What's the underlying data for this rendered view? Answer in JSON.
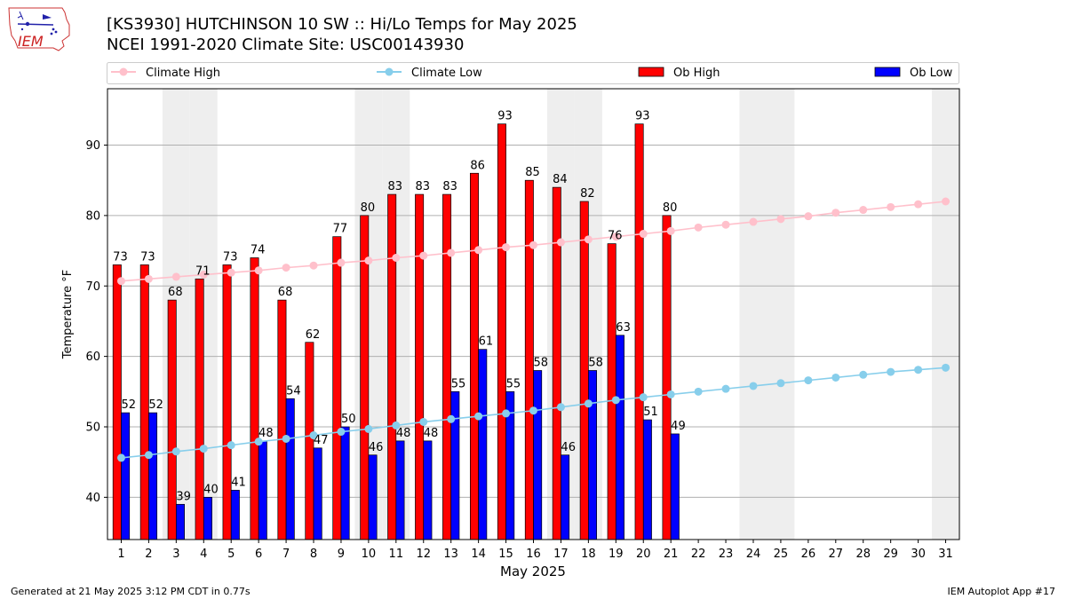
{
  "title_line1": "[KS3930] HUTCHINSON 10 SW :: Hi/Lo Temps for May 2025",
  "title_line2": "NCEI 1991-2020 Climate Site: USC00143930",
  "logo_text": "IEM",
  "footer_left": "Generated at 21 May 2025 3:12 PM CDT in 0.77s",
  "footer_right": "IEM Autoplot App #17",
  "colors": {
    "climate_high": "#ffc0cb",
    "climate_low": "#87ceeb",
    "ob_high": "#ff0000",
    "ob_low": "#0000ff",
    "weekend_shade": "#eeeeee",
    "grid": "#b0b0b0"
  },
  "chart_data": {
    "type": "bar",
    "xlabel": "May 2025",
    "ylabel": "Temperature °F",
    "xlim": [
      0.5,
      31.5
    ],
    "ylim": [
      34,
      98
    ],
    "yticks": [
      40,
      50,
      60,
      70,
      80,
      90
    ],
    "grid": "horizontal",
    "legend_placement": "top",
    "days": [
      1,
      2,
      3,
      4,
      5,
      6,
      7,
      8,
      9,
      10,
      11,
      12,
      13,
      14,
      15,
      16,
      17,
      18,
      19,
      20,
      21,
      22,
      23,
      24,
      25,
      26,
      27,
      28,
      29,
      30,
      31
    ],
    "weekend_shaded_days": [
      3,
      4,
      10,
      11,
      17,
      18,
      24,
      25,
      31
    ],
    "series": [
      {
        "name": "Climate High",
        "kind": "line",
        "values": [
          70.7,
          71.0,
          71.3,
          71.6,
          71.9,
          72.2,
          72.6,
          72.9,
          73.3,
          73.6,
          74.0,
          74.3,
          74.7,
          75.1,
          75.5,
          75.8,
          76.2,
          76.6,
          77.0,
          77.4,
          77.8,
          78.3,
          78.7,
          79.1,
          79.5,
          79.9,
          80.4,
          80.8,
          81.2,
          81.6,
          82.0
        ]
      },
      {
        "name": "Climate Low",
        "kind": "line",
        "values": [
          45.6,
          46.0,
          46.5,
          46.9,
          47.4,
          47.9,
          48.3,
          48.8,
          49.3,
          49.7,
          50.2,
          50.7,
          51.1,
          51.5,
          51.9,
          52.3,
          52.8,
          53.3,
          53.8,
          54.2,
          54.6,
          55.0,
          55.4,
          55.8,
          56.2,
          56.6,
          57.0,
          57.4,
          57.8,
          58.1,
          58.4
        ]
      },
      {
        "name": "Ob High",
        "kind": "bar",
        "values": [
          73,
          73,
          68,
          71,
          73,
          74,
          68,
          62,
          77,
          80,
          83,
          83,
          83,
          86,
          93,
          85,
          84,
          82,
          76,
          93,
          80
        ]
      },
      {
        "name": "Ob Low",
        "kind": "bar",
        "values": [
          52,
          52,
          39,
          40,
          41,
          48,
          54,
          47,
          50,
          46,
          48,
          48,
          55,
          61,
          55,
          58,
          46,
          58,
          63,
          51,
          49
        ]
      }
    ]
  }
}
